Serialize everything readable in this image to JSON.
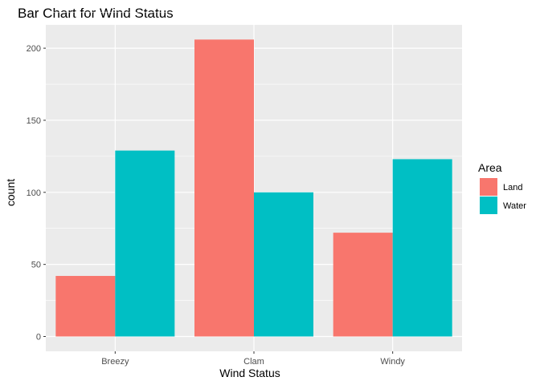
{
  "chart_data": {
    "type": "bar",
    "title": "Bar Chart for Wind Status",
    "xlabel": "Wind Status",
    "ylabel": "count",
    "categories": [
      "Breezy",
      "Clam",
      "Windy"
    ],
    "series": [
      {
        "name": "Land",
        "color": "#F8766D",
        "values": [
          42,
          206,
          72
        ]
      },
      {
        "name": "Water",
        "color": "#00BFC4",
        "values": [
          129,
          100,
          123
        ]
      }
    ],
    "ylim": [
      0,
      228
    ],
    "yticks": [
      0,
      50,
      100,
      150,
      200
    ],
    "grid": true,
    "legend": {
      "title": "Area",
      "position": "right"
    },
    "panel_background": "#EBEBEB",
    "grid_color": "#FFFFFF"
  }
}
